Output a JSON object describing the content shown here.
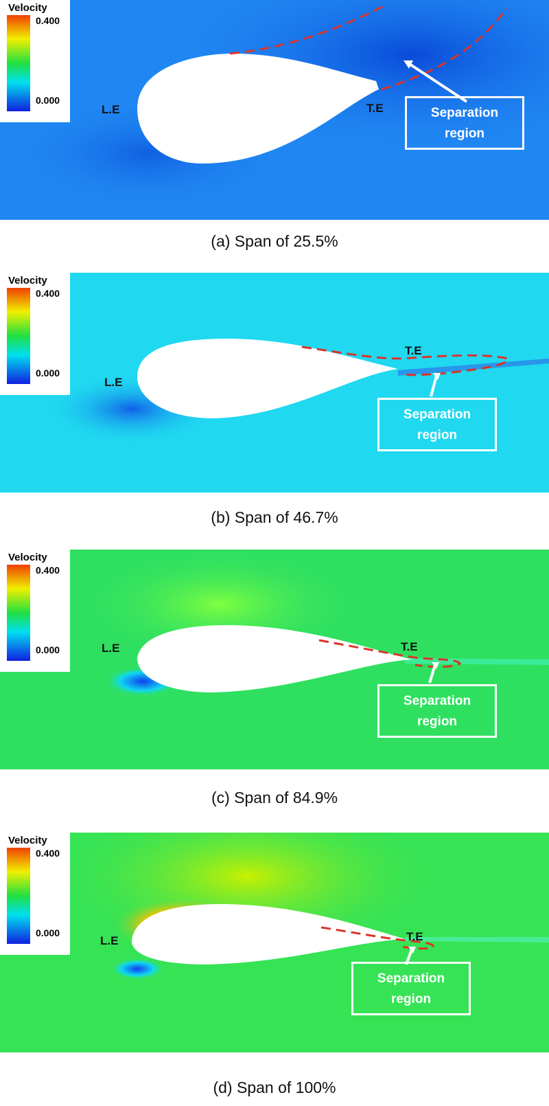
{
  "legend": {
    "title": "Velocity",
    "max": "0.400",
    "min": "0.000"
  },
  "labels": {
    "leading_edge": "L.E",
    "trailing_edge": "T.E",
    "separation": [
      "Separation",
      "region"
    ]
  },
  "panels": [
    {
      "caption": "(a) Span of  25.5%",
      "background": "#1f86f2"
    },
    {
      "caption": "(b) Span of  46.7%",
      "background": "#20d8f0"
    },
    {
      "caption": "(c) Span of 84.9%",
      "background": "#2fe060"
    },
    {
      "caption": "(d) Span of 100%",
      "background": "#36e355"
    }
  ],
  "colors": {
    "separation_line": "#d9342b",
    "legend_scale": [
      "#1020e0",
      "#00e0f0",
      "#20e040",
      "#f0f000",
      "#f04000"
    ]
  }
}
